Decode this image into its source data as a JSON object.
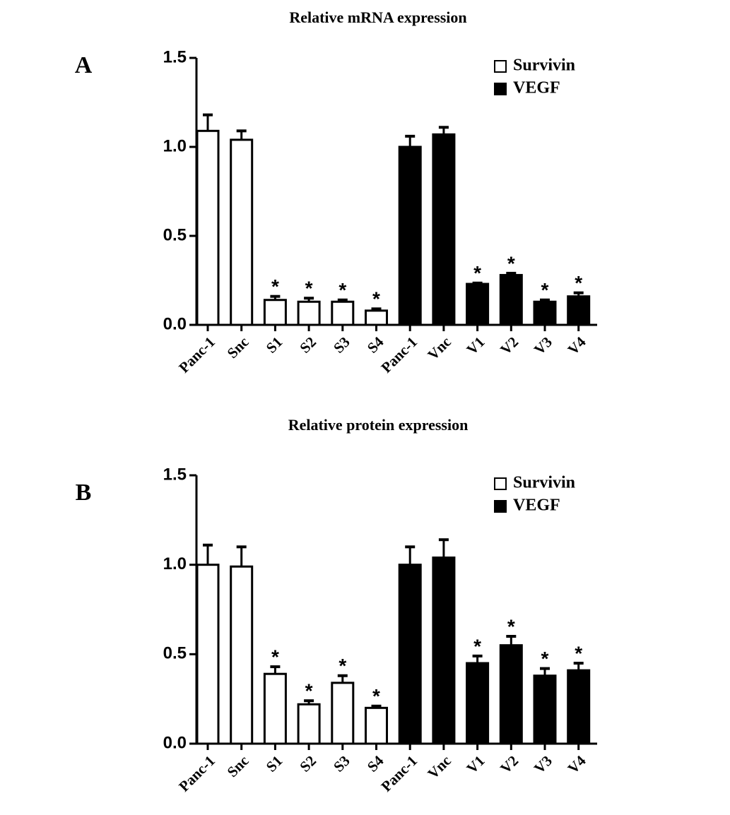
{
  "chart_data": [
    {
      "type": "bar",
      "title": "Relative mRNA expression",
      "panel_label": "A",
      "categories": [
        "Panc-1",
        "Snc",
        "S1",
        "S2",
        "S3",
        "S4",
        "Panc-1",
        "Vnc",
        "V1",
        "V2",
        "V3",
        "V4"
      ],
      "series": [
        {
          "name": "Survivin",
          "color": "#ffffff",
          "values": [
            1.09,
            1.04,
            0.14,
            0.13,
            0.13,
            0.08,
            null,
            null,
            null,
            null,
            null,
            null
          ],
          "errors": [
            0.09,
            0.05,
            0.02,
            0.02,
            0.01,
            0.01,
            null,
            null,
            null,
            null,
            null,
            null
          ]
        },
        {
          "name": "VEGF",
          "color": "#000000",
          "values": [
            null,
            null,
            null,
            null,
            null,
            null,
            1.0,
            1.07,
            0.23,
            0.28,
            0.13,
            0.16
          ],
          "errors": [
            null,
            null,
            null,
            null,
            null,
            null,
            0.06,
            0.04,
            0.005,
            0.01,
            0.01,
            0.02
          ]
        }
      ],
      "significance": [
        null,
        null,
        "*",
        "*",
        "*",
        "*",
        null,
        null,
        "*",
        "*",
        "*",
        "*"
      ],
      "ylim": [
        0,
        1.5
      ],
      "yticks": [
        {
          "value": 0,
          "label": "0.0"
        },
        0.5,
        {
          "value": 1,
          "label": "1.0"
        },
        1.5
      ],
      "legend": "upper right"
    },
    {
      "type": "bar",
      "title": "Relative protein expression",
      "panel_label": "B",
      "categories": [
        "Panc-1",
        "Snc",
        "S1",
        "S2",
        "S3",
        "S4",
        "Panc-1",
        "Vnc",
        "V1",
        "V2",
        "V3",
        "V4"
      ],
      "series": [
        {
          "name": "Survivin",
          "color": "#ffffff",
          "values": [
            1.0,
            0.99,
            0.39,
            0.22,
            0.34,
            0.2,
            null,
            null,
            null,
            null,
            null,
            null
          ],
          "errors": [
            0.11,
            0.11,
            0.04,
            0.02,
            0.04,
            0.01,
            null,
            null,
            null,
            null,
            null,
            null
          ]
        },
        {
          "name": "VEGF",
          "color": "#000000",
          "values": [
            null,
            null,
            null,
            null,
            null,
            null,
            1.0,
            1.04,
            0.45,
            0.55,
            0.38,
            0.41
          ],
          "errors": [
            null,
            null,
            null,
            null,
            null,
            null,
            0.1,
            0.1,
            0.04,
            0.05,
            0.04,
            0.04
          ]
        }
      ],
      "significance": [
        null,
        null,
        "*",
        "*",
        "*",
        "*",
        null,
        null,
        "*",
        "*",
        "*",
        "*"
      ],
      "ylim": [
        0,
        1.5
      ],
      "yticks": [
        {
          "value": 0,
          "label": "0.0"
        },
        0.5,
        {
          "value": 1,
          "label": "1.0"
        },
        1.5
      ],
      "legend": "upper right"
    }
  ]
}
